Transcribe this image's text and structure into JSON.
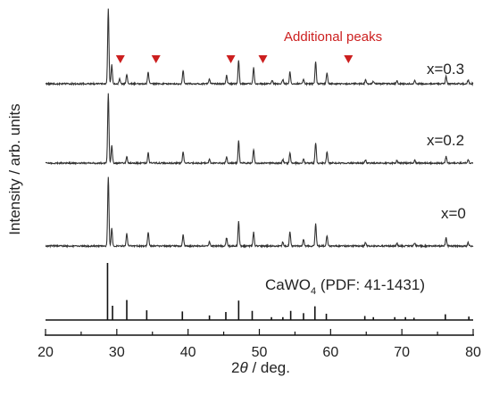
{
  "chart_data": {
    "type": "line",
    "xlabel": "2θ / deg.",
    "xlabel_main": "2",
    "xlabel_theta": "θ",
    "xlabel_unit": " / deg.",
    "ylabel": "Intensity / arb. units",
    "xlim": [
      20,
      80
    ],
    "xticks": [
      20,
      30,
      40,
      50,
      60,
      70,
      80
    ],
    "xtick_labels": [
      "20",
      "30",
      "40",
      "50",
      "60",
      "70",
      "80"
    ],
    "grid": false,
    "annotation": "Additional peaks",
    "annotation_color": "#cc1f1f",
    "additional_peak_positions": [
      30.5,
      35.5,
      46.0,
      50.5,
      62.5
    ],
    "series": [
      {
        "name": "x=0.3",
        "peaks": [
          [
            28.8,
            1.0
          ],
          [
            29.3,
            0.25
          ],
          [
            30.4,
            0.07
          ],
          [
            31.4,
            0.12
          ],
          [
            34.4,
            0.16
          ],
          [
            39.3,
            0.18
          ],
          [
            43.0,
            0.06
          ],
          [
            45.4,
            0.11
          ],
          [
            47.1,
            0.32
          ],
          [
            49.2,
            0.22
          ],
          [
            51.8,
            0.05
          ],
          [
            53.3,
            0.06
          ],
          [
            54.3,
            0.16
          ],
          [
            56.2,
            0.06
          ],
          [
            57.9,
            0.3
          ],
          [
            59.5,
            0.15
          ],
          [
            64.9,
            0.05
          ],
          [
            66.0,
            0.03
          ],
          [
            69.3,
            0.04
          ],
          [
            71.8,
            0.05
          ],
          [
            76.2,
            0.1
          ],
          [
            79.3,
            0.05
          ]
        ]
      },
      {
        "name": "x=0.2",
        "peaks": [
          [
            28.8,
            1.0
          ],
          [
            29.3,
            0.25
          ],
          [
            31.4,
            0.1
          ],
          [
            34.4,
            0.15
          ],
          [
            39.3,
            0.16
          ],
          [
            43.0,
            0.05
          ],
          [
            45.4,
            0.09
          ],
          [
            47.1,
            0.32
          ],
          [
            49.2,
            0.2
          ],
          [
            53.3,
            0.05
          ],
          [
            54.3,
            0.15
          ],
          [
            56.2,
            0.06
          ],
          [
            57.9,
            0.3
          ],
          [
            59.5,
            0.16
          ],
          [
            64.9,
            0.05
          ],
          [
            69.3,
            0.04
          ],
          [
            71.8,
            0.04
          ],
          [
            76.2,
            0.1
          ],
          [
            79.3,
            0.05
          ]
        ]
      },
      {
        "name": "x=0",
        "peaks": [
          [
            28.8,
            1.0
          ],
          [
            29.3,
            0.25
          ],
          [
            31.4,
            0.18
          ],
          [
            34.4,
            0.2
          ],
          [
            39.3,
            0.16
          ],
          [
            43.0,
            0.06
          ],
          [
            45.4,
            0.12
          ],
          [
            47.1,
            0.35
          ],
          [
            49.2,
            0.2
          ],
          [
            53.3,
            0.06
          ],
          [
            54.3,
            0.2
          ],
          [
            56.2,
            0.1
          ],
          [
            57.9,
            0.32
          ],
          [
            59.5,
            0.15
          ],
          [
            64.9,
            0.05
          ],
          [
            69.3,
            0.04
          ],
          [
            71.8,
            0.04
          ],
          [
            76.2,
            0.12
          ],
          [
            79.3,
            0.05
          ]
        ]
      },
      {
        "name": "CaWO",
        "name_sub": "4",
        "name_rest": " (PDF: 41-1431)",
        "peaks": [
          [
            28.7,
            1.0
          ],
          [
            29.4,
            0.25
          ],
          [
            31.4,
            0.35
          ],
          [
            34.2,
            0.17
          ],
          [
            39.2,
            0.15
          ],
          [
            43.0,
            0.08
          ],
          [
            45.3,
            0.14
          ],
          [
            47.1,
            0.34
          ],
          [
            49.0,
            0.16
          ],
          [
            51.7,
            0.05
          ],
          [
            53.3,
            0.05
          ],
          [
            54.4,
            0.16
          ],
          [
            56.2,
            0.12
          ],
          [
            57.8,
            0.24
          ],
          [
            59.4,
            0.11
          ],
          [
            64.8,
            0.07
          ],
          [
            66.0,
            0.05
          ],
          [
            69.0,
            0.05
          ],
          [
            70.5,
            0.05
          ],
          [
            71.7,
            0.04
          ],
          [
            76.1,
            0.1
          ],
          [
            79.4,
            0.06
          ]
        ]
      }
    ]
  }
}
